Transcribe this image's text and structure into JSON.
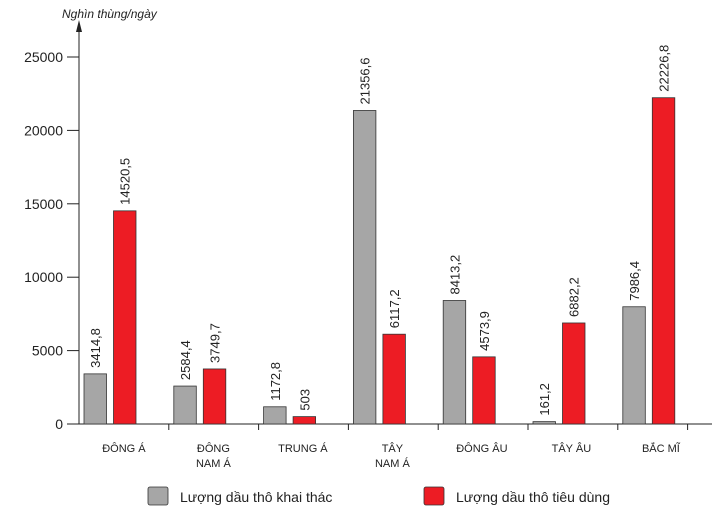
{
  "chart_data": {
    "type": "bar",
    "ylabel": "Nghìn thùng/ngày",
    "ylim": [
      0,
      25000
    ],
    "yticks": [
      0,
      5000,
      10000,
      15000,
      20000,
      25000
    ],
    "categories": [
      [
        "ĐÔNG Á"
      ],
      [
        "ĐÔNG",
        "NAM Á"
      ],
      [
        "TRUNG Á"
      ],
      [
        "TÂY",
        "NAM Á"
      ],
      [
        "ĐÔNG ÂU"
      ],
      [
        "TÂY ÂU"
      ],
      [
        "BẮC MĨ"
      ]
    ],
    "series": [
      {
        "name": "Lượng dầu thô khai thác",
        "color": "#a6a6a6",
        "values": [
          3414.8,
          2584.4,
          1172.8,
          21356.6,
          8413.2,
          161.2,
          7986.4
        ],
        "labels": [
          "3414,8",
          "2584,4",
          "1172,8",
          "21356,6",
          "8413,2",
          "161,2",
          "7986,4"
        ]
      },
      {
        "name": "Lượng dầu thô tiêu dùng",
        "color": "#ed1c24",
        "values": [
          14520.5,
          3749.7,
          503,
          6117.2,
          4573.9,
          6882.2,
          22226.8
        ],
        "labels": [
          "14520,5",
          "3749,7",
          "503",
          "6117,2",
          "4573,9",
          "6882,2",
          "22226,8"
        ]
      }
    ],
    "grid": false,
    "legend_placement": "bottom"
  }
}
